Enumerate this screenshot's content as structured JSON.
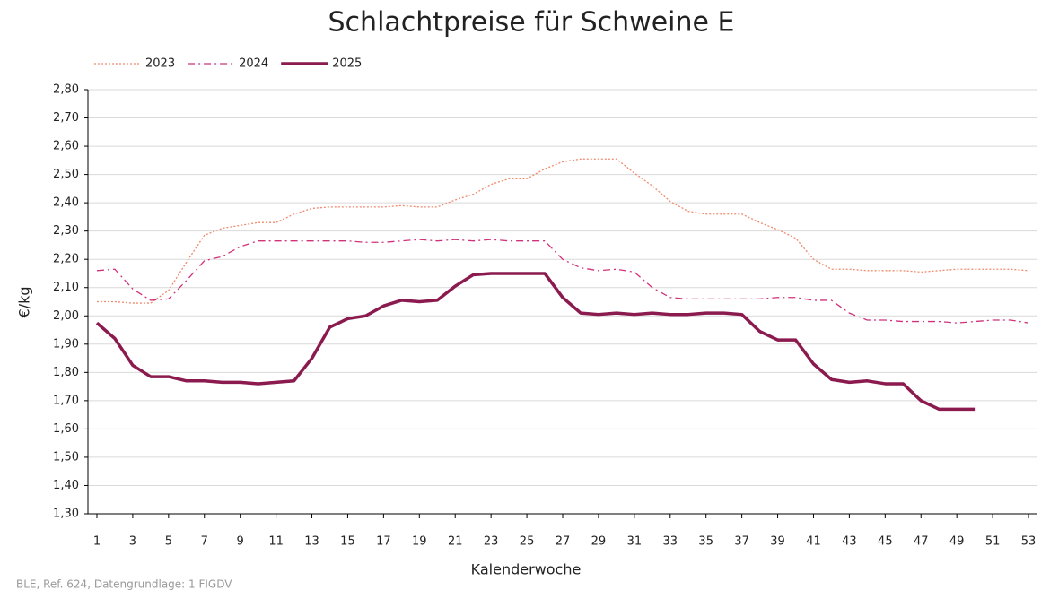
{
  "chart_data": {
    "type": "line",
    "title": "Schlachtpreise für Schweine E",
    "x_label": "Kalenderwoche",
    "y_label": "€/kg",
    "source": "BLE, Ref. 624, Datengrundlage: 1 FIGDV",
    "x": [
      1,
      2,
      3,
      4,
      5,
      6,
      7,
      8,
      9,
      10,
      11,
      12,
      13,
      14,
      15,
      16,
      17,
      18,
      19,
      20,
      21,
      22,
      23,
      24,
      25,
      26,
      27,
      28,
      29,
      30,
      31,
      32,
      33,
      34,
      35,
      36,
      37,
      38,
      39,
      40,
      41,
      42,
      43,
      44,
      45,
      46,
      47,
      48,
      49,
      50,
      51,
      52,
      53
    ],
    "xlim": [
      0.5,
      53.5
    ],
    "xticks": [
      1,
      3,
      5,
      7,
      9,
      11,
      13,
      15,
      17,
      19,
      21,
      23,
      25,
      27,
      29,
      31,
      33,
      35,
      37,
      39,
      41,
      43,
      45,
      47,
      49,
      51,
      53
    ],
    "ylim": [
      1.3,
      2.8
    ],
    "yticks": [
      {
        "value": 1.3,
        "label": "1,30"
      },
      {
        "value": 1.4,
        "label": "1,40"
      },
      {
        "value": 1.5,
        "label": "1,50"
      },
      {
        "value": 1.6,
        "label": "1,60"
      },
      {
        "value": 1.7,
        "label": "1,70"
      },
      {
        "value": 1.8,
        "label": "1,80"
      },
      {
        "value": 1.9,
        "label": "1,90"
      },
      {
        "value": 2.0,
        "label": "2,00"
      },
      {
        "value": 2.1,
        "label": "2,10"
      },
      {
        "value": 2.2,
        "label": "2,20"
      },
      {
        "value": 2.3,
        "label": "2,30"
      },
      {
        "value": 2.4,
        "label": "2,40"
      },
      {
        "value": 2.5,
        "label": "2,50"
      },
      {
        "value": 2.6,
        "label": "2,60"
      },
      {
        "value": 2.7,
        "label": "2,70"
      },
      {
        "value": 2.8,
        "label": "2,80"
      }
    ],
    "grid": true,
    "legend": "top-left",
    "series": [
      {
        "name": "2023",
        "color": "#f08a6c",
        "line_style": "dotted",
        "width": 1.3,
        "values": [
          2.05,
          2.05,
          2.045,
          2.045,
          2.09,
          2.19,
          2.285,
          2.31,
          2.32,
          2.33,
          2.33,
          2.36,
          2.38,
          2.385,
          2.385,
          2.385,
          2.385,
          2.39,
          2.385,
          2.385,
          2.41,
          2.43,
          2.465,
          2.485,
          2.485,
          2.52,
          2.545,
          2.555,
          2.555,
          2.555,
          2.505,
          2.46,
          2.405,
          2.37,
          2.36,
          2.36,
          2.36,
          2.33,
          2.305,
          2.275,
          2.2,
          2.165,
          2.165,
          2.16,
          2.16,
          2.16,
          2.155,
          2.16,
          2.165,
          2.165,
          2.165,
          2.165,
          2.16
        ]
      },
      {
        "name": "2024",
        "color": "#d0327c",
        "line_style": "dashdot",
        "width": 1.3,
        "values": [
          2.16,
          2.165,
          2.095,
          2.055,
          2.06,
          2.125,
          2.195,
          2.21,
          2.245,
          2.265,
          2.265,
          2.265,
          2.265,
          2.265,
          2.265,
          2.26,
          2.26,
          2.265,
          2.27,
          2.265,
          2.27,
          2.265,
          2.27,
          2.265,
          2.265,
          2.265,
          2.2,
          2.17,
          2.16,
          2.165,
          2.155,
          2.1,
          2.065,
          2.06,
          2.06,
          2.06,
          2.06,
          2.06,
          2.065,
          2.065,
          2.055,
          2.055,
          2.01,
          1.985,
          1.985,
          1.98,
          1.98,
          1.98,
          1.975,
          1.98,
          1.985,
          1.985,
          1.975
        ]
      },
      {
        "name": "2025",
        "color": "#8b1a4e",
        "line_style": "solid",
        "width": 3.5,
        "values": [
          1.975,
          1.92,
          1.825,
          1.785,
          1.785,
          1.77,
          1.77,
          1.765,
          1.765,
          1.76,
          1.765,
          1.77,
          1.85,
          1.96,
          1.99,
          2.0,
          2.035,
          2.055,
          2.05,
          2.055,
          2.105,
          2.145,
          2.15,
          2.15,
          2.15,
          2.15,
          2.065,
          2.01,
          2.005,
          2.01,
          2.005,
          2.01,
          2.005,
          2.005,
          2.01,
          2.01,
          2.005,
          1.945,
          1.915,
          1.915,
          1.83,
          1.775,
          1.765,
          1.77,
          1.76,
          1.76,
          1.7,
          1.67,
          1.67,
          1.67,
          null,
          null,
          null
        ]
      }
    ]
  }
}
